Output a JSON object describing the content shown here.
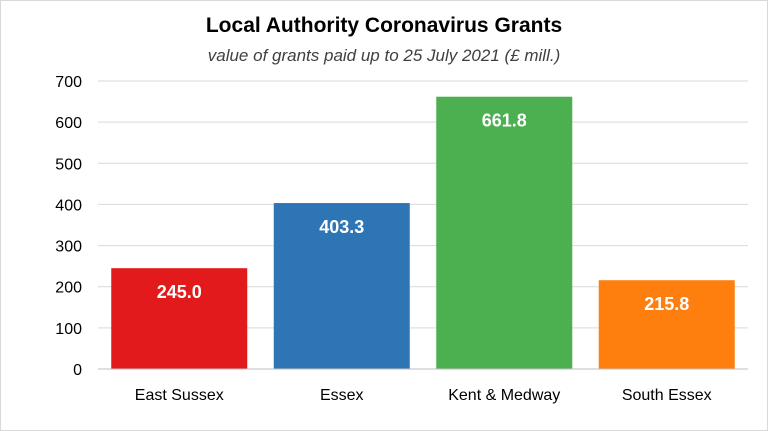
{
  "chart_data": {
    "type": "bar",
    "title": "Local Authority Coronavirus Grants",
    "subtitle": "value of grants paid up to 25 July 2021 (£ mill.)",
    "categories": [
      "East Sussex",
      "Essex",
      "Kent & Medway",
      "South Essex"
    ],
    "values": [
      245.0,
      403.3,
      661.8,
      215.8
    ],
    "data_labels": [
      "245.0",
      "403.3",
      "661.8",
      "215.8"
    ],
    "colors": [
      "#e31a1c",
      "#2e75b6",
      "#4caf50",
      "#ff7f0e"
    ],
    "ylim": [
      0,
      700
    ],
    "yticks": [
      0,
      100,
      200,
      300,
      400,
      500,
      600,
      700
    ],
    "grid": true,
    "legend": "none"
  }
}
